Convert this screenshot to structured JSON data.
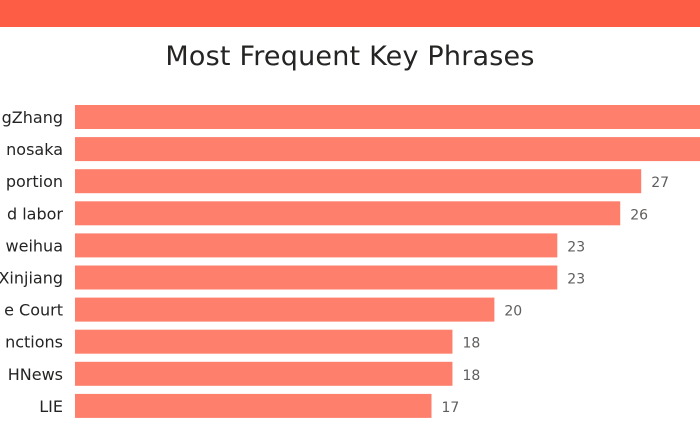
{
  "chart_data": {
    "type": "bar",
    "orientation": "horizontal",
    "title": "Most Frequent Key Phrases",
    "categories": [
      "gZhang",
      "nosaka",
      "portion",
      "d labor",
      "weihua",
      "Xinjiang",
      "e Court",
      "nctions",
      "HNews",
      "LIE"
    ],
    "values": [
      34,
      34,
      27,
      26,
      23,
      23,
      20,
      18,
      18,
      17
    ],
    "data_labels": [
      "",
      "",
      "27",
      "26",
      "23",
      "23",
      "20",
      "18",
      "18",
      "17"
    ],
    "xlim": [
      0,
      34
    ],
    "grid": false,
    "legend": "none",
    "bar_color": "#fe7f6b",
    "header_color": "#fd5d45"
  }
}
